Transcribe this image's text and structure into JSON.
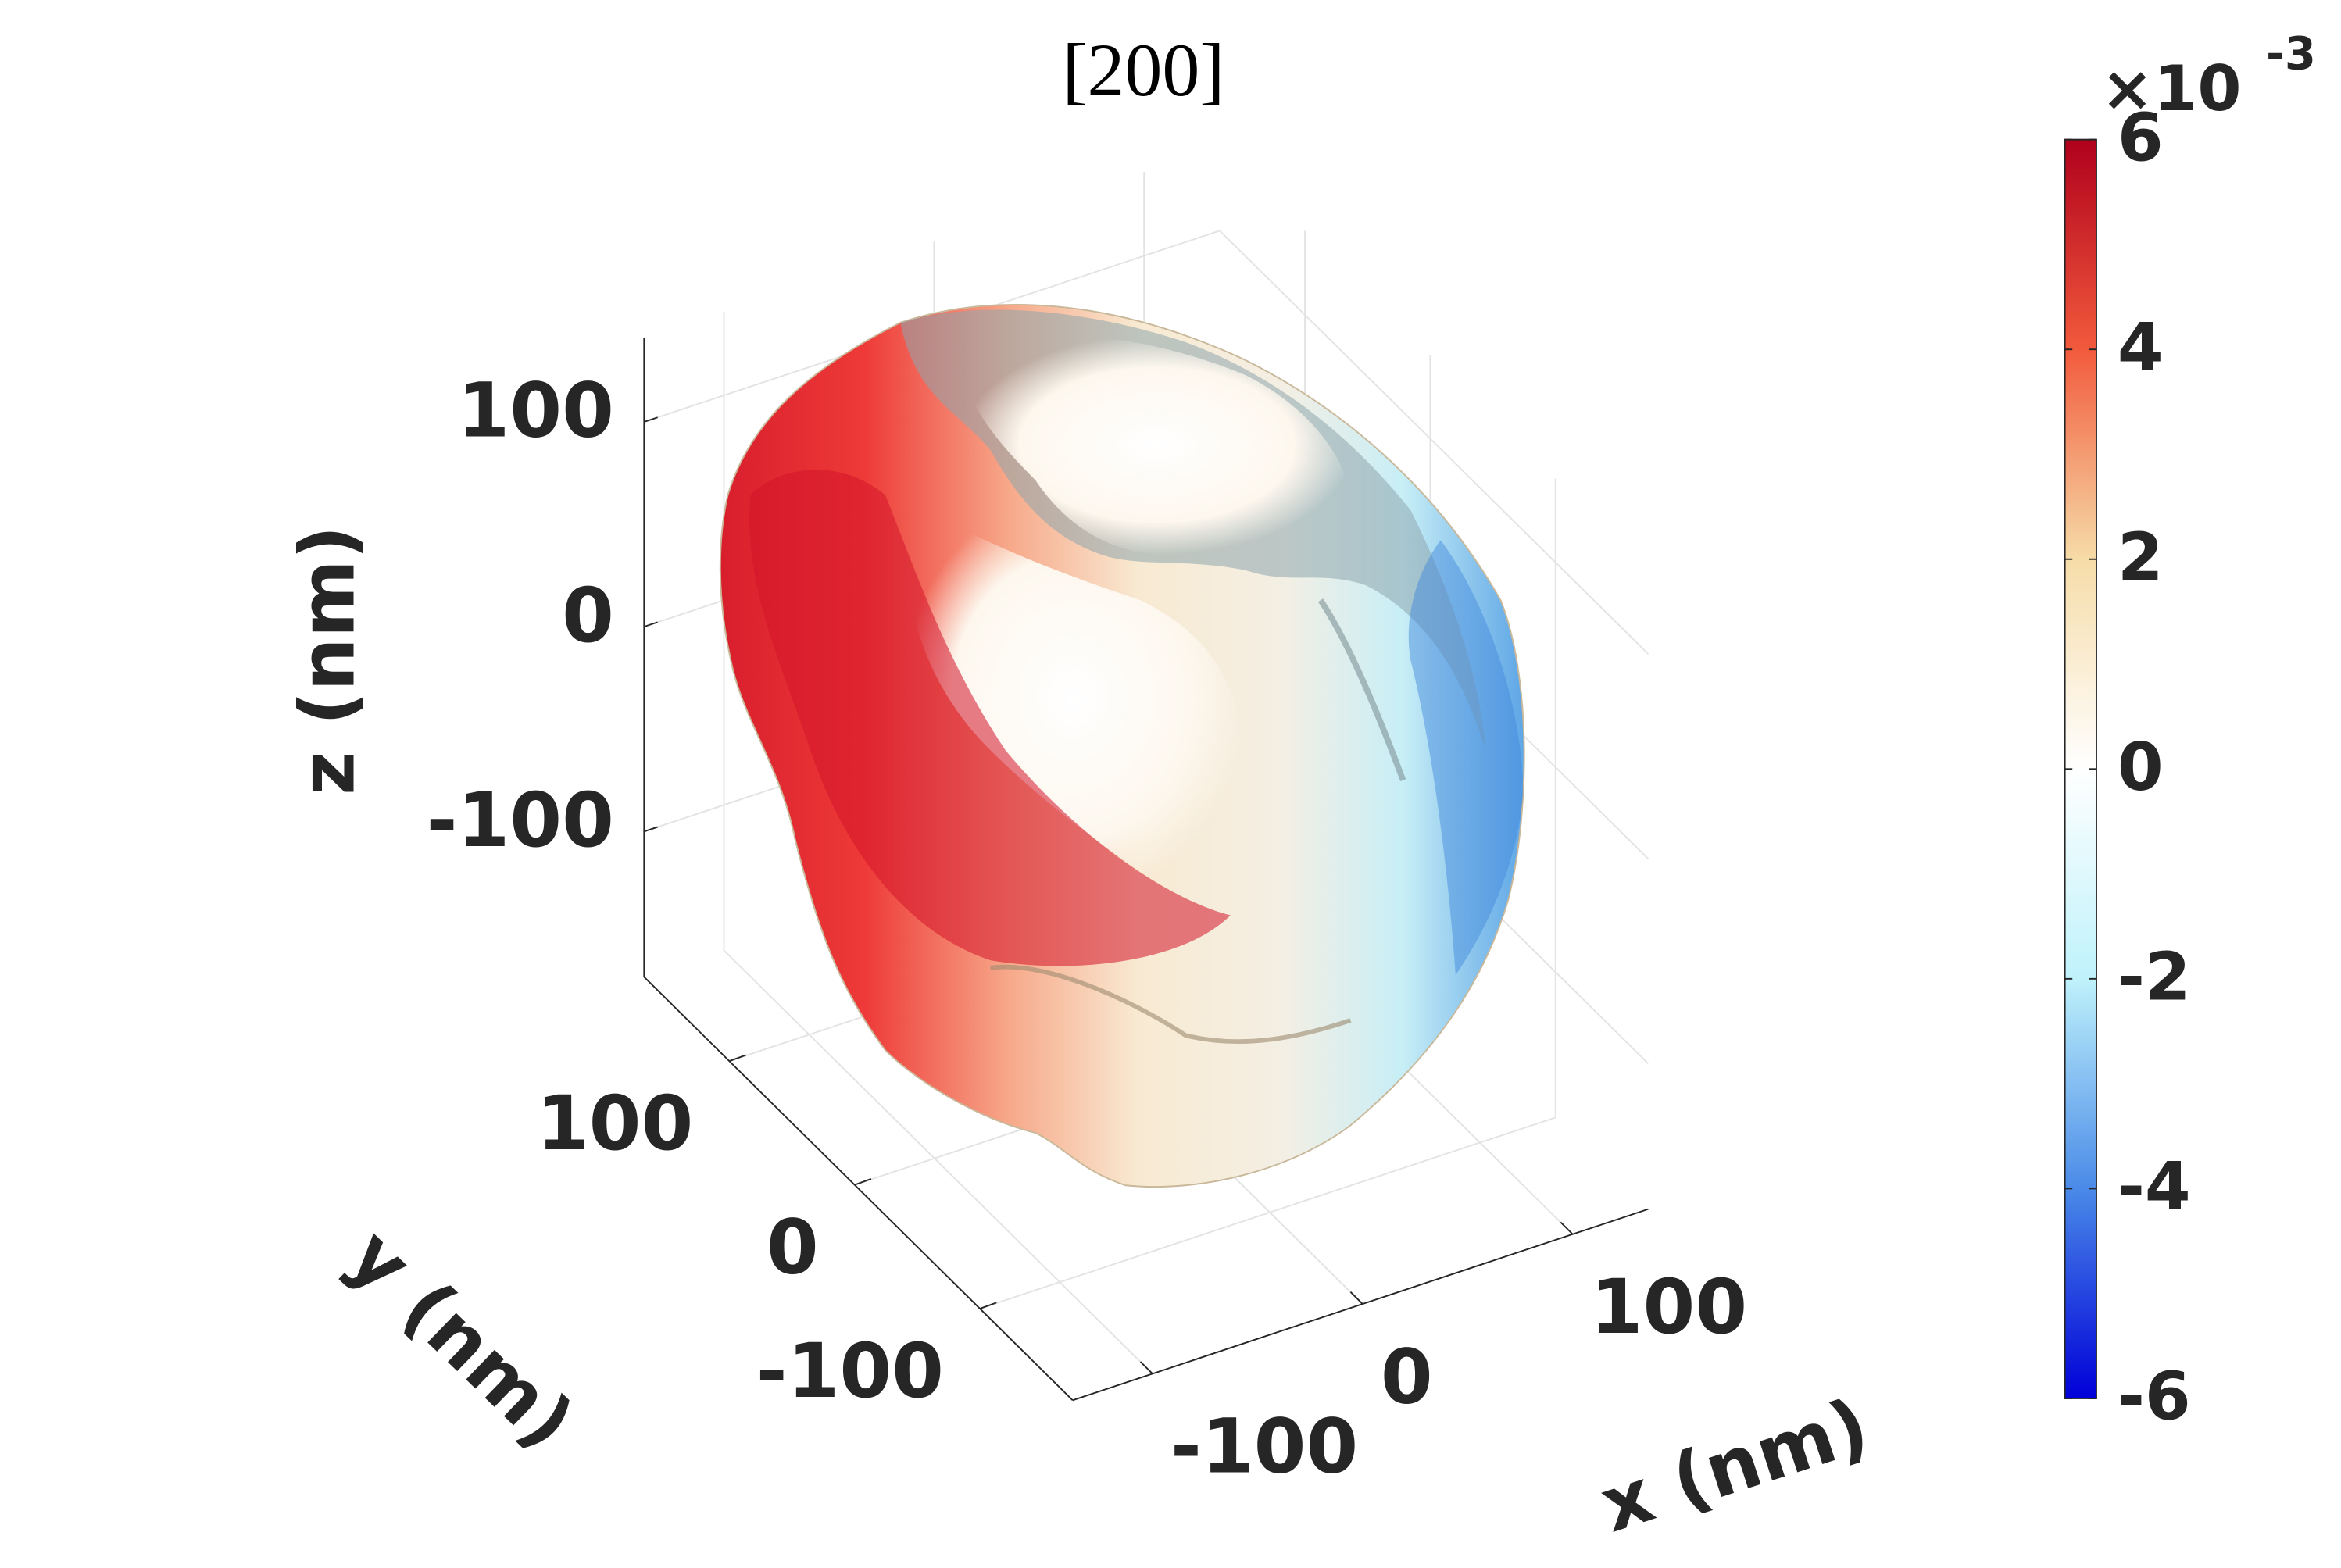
{
  "chart_data": {
    "type": "isosurface3d",
    "title": "[200]",
    "xlabel": "x (nm)",
    "ylabel": "y (nm)",
    "zlabel": "z (nm)",
    "xlim": [
      -138,
      136
    ],
    "ylim": [
      -174,
      168
    ],
    "zlim": [
      -171,
      141
    ],
    "xticks": [
      -100,
      0,
      100
    ],
    "yticks": [
      -100,
      0,
      100
    ],
    "zticks": [
      -100,
      0,
      100
    ],
    "grid": true,
    "colorbar": {
      "clim": [
        -6,
        6
      ],
      "ticks": [
        -6,
        -4,
        -2,
        0,
        2,
        4,
        6
      ],
      "multiplier": "×10",
      "exponent": "-3",
      "colormap": [
        "#0000d8",
        "#4a8ae8",
        "#bff2fb",
        "#ffffff",
        "#f6dca8",
        "#f25a3c",
        "#b0001c"
      ]
    }
  }
}
